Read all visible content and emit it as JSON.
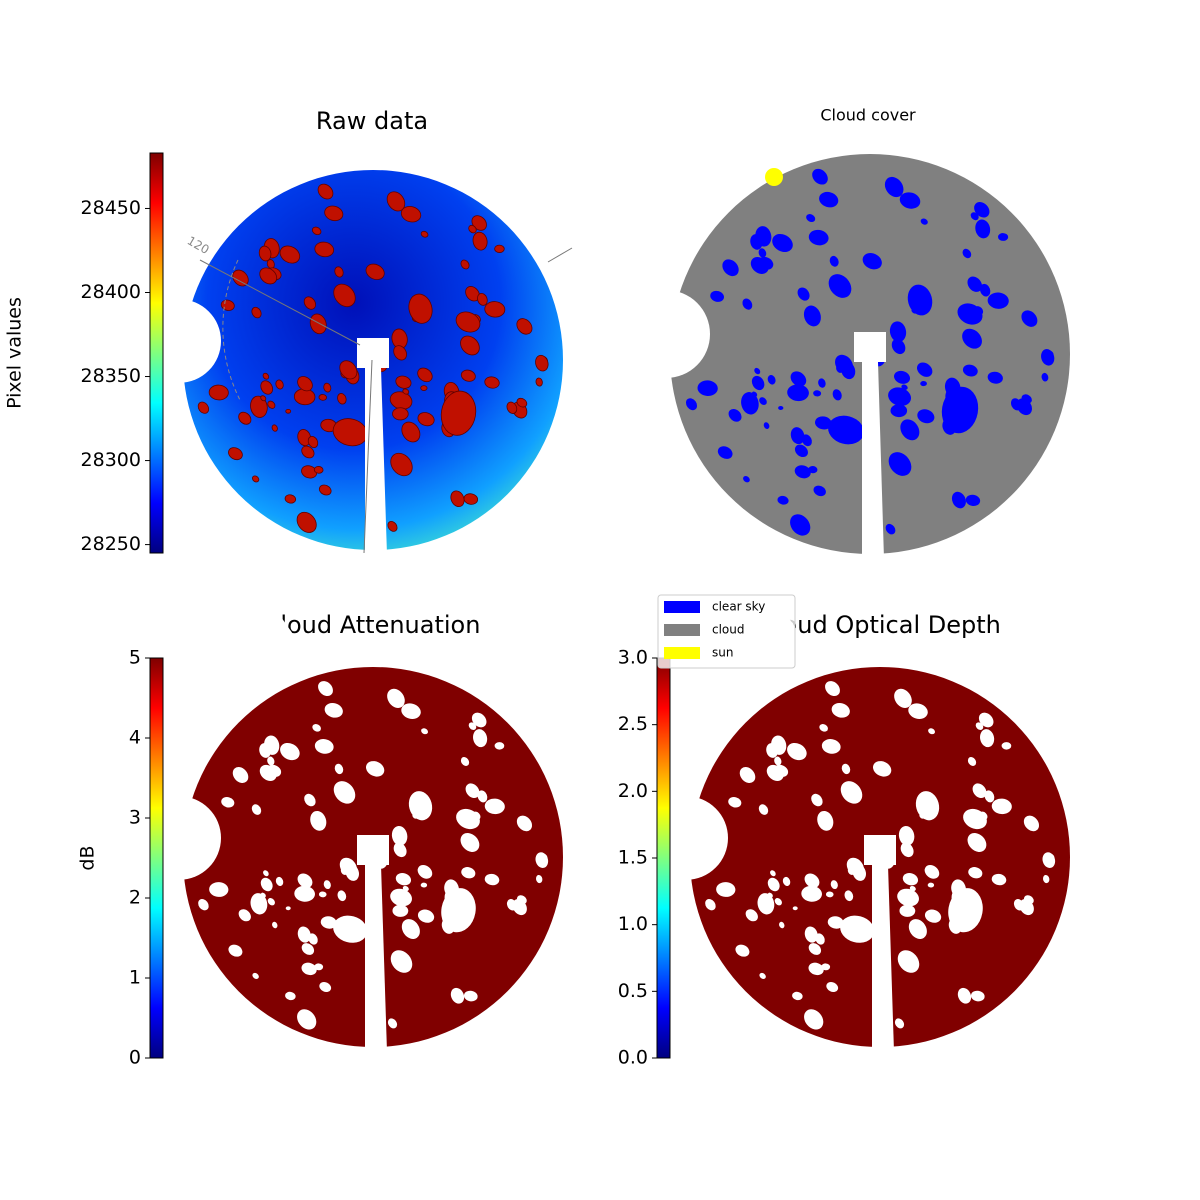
{
  "chart_data": [
    {
      "type": "image",
      "title": "Raw data",
      "colorbar_label": "Pixel values",
      "colormap": "jet",
      "clim": [
        28245,
        28483
      ],
      "cticks": [
        28250,
        28300,
        28350,
        28400,
        28450
      ],
      "annotations": [
        "120"
      ]
    },
    {
      "type": "image",
      "title": "Cloud cover",
      "series": [
        {
          "name": "clear sky",
          "color": "#0000ff"
        },
        {
          "name": "cloud",
          "color": "#808080"
        },
        {
          "name": "sun",
          "color": "#ffff00"
        }
      ]
    },
    {
      "type": "image",
      "title": "Cloud Attenuation",
      "colorbar_label": "dB",
      "colormap": "jet",
      "clim": [
        0,
        5
      ],
      "cticks": [
        0,
        1,
        2,
        3,
        4,
        5
      ]
    },
    {
      "type": "image",
      "title": "Cloud Optical Depth",
      "colormap": "jet",
      "clim": [
        0,
        3
      ],
      "cticks": [
        {
          "value": 0,
          "label": "0.0"
        },
        0.5,
        {
          "value": 1,
          "label": "1.0"
        },
        1.5,
        {
          "value": 2,
          "label": "2.0"
        },
        2.5,
        {
          "value": 3,
          "label": "3.0"
        }
      ]
    }
  ]
}
